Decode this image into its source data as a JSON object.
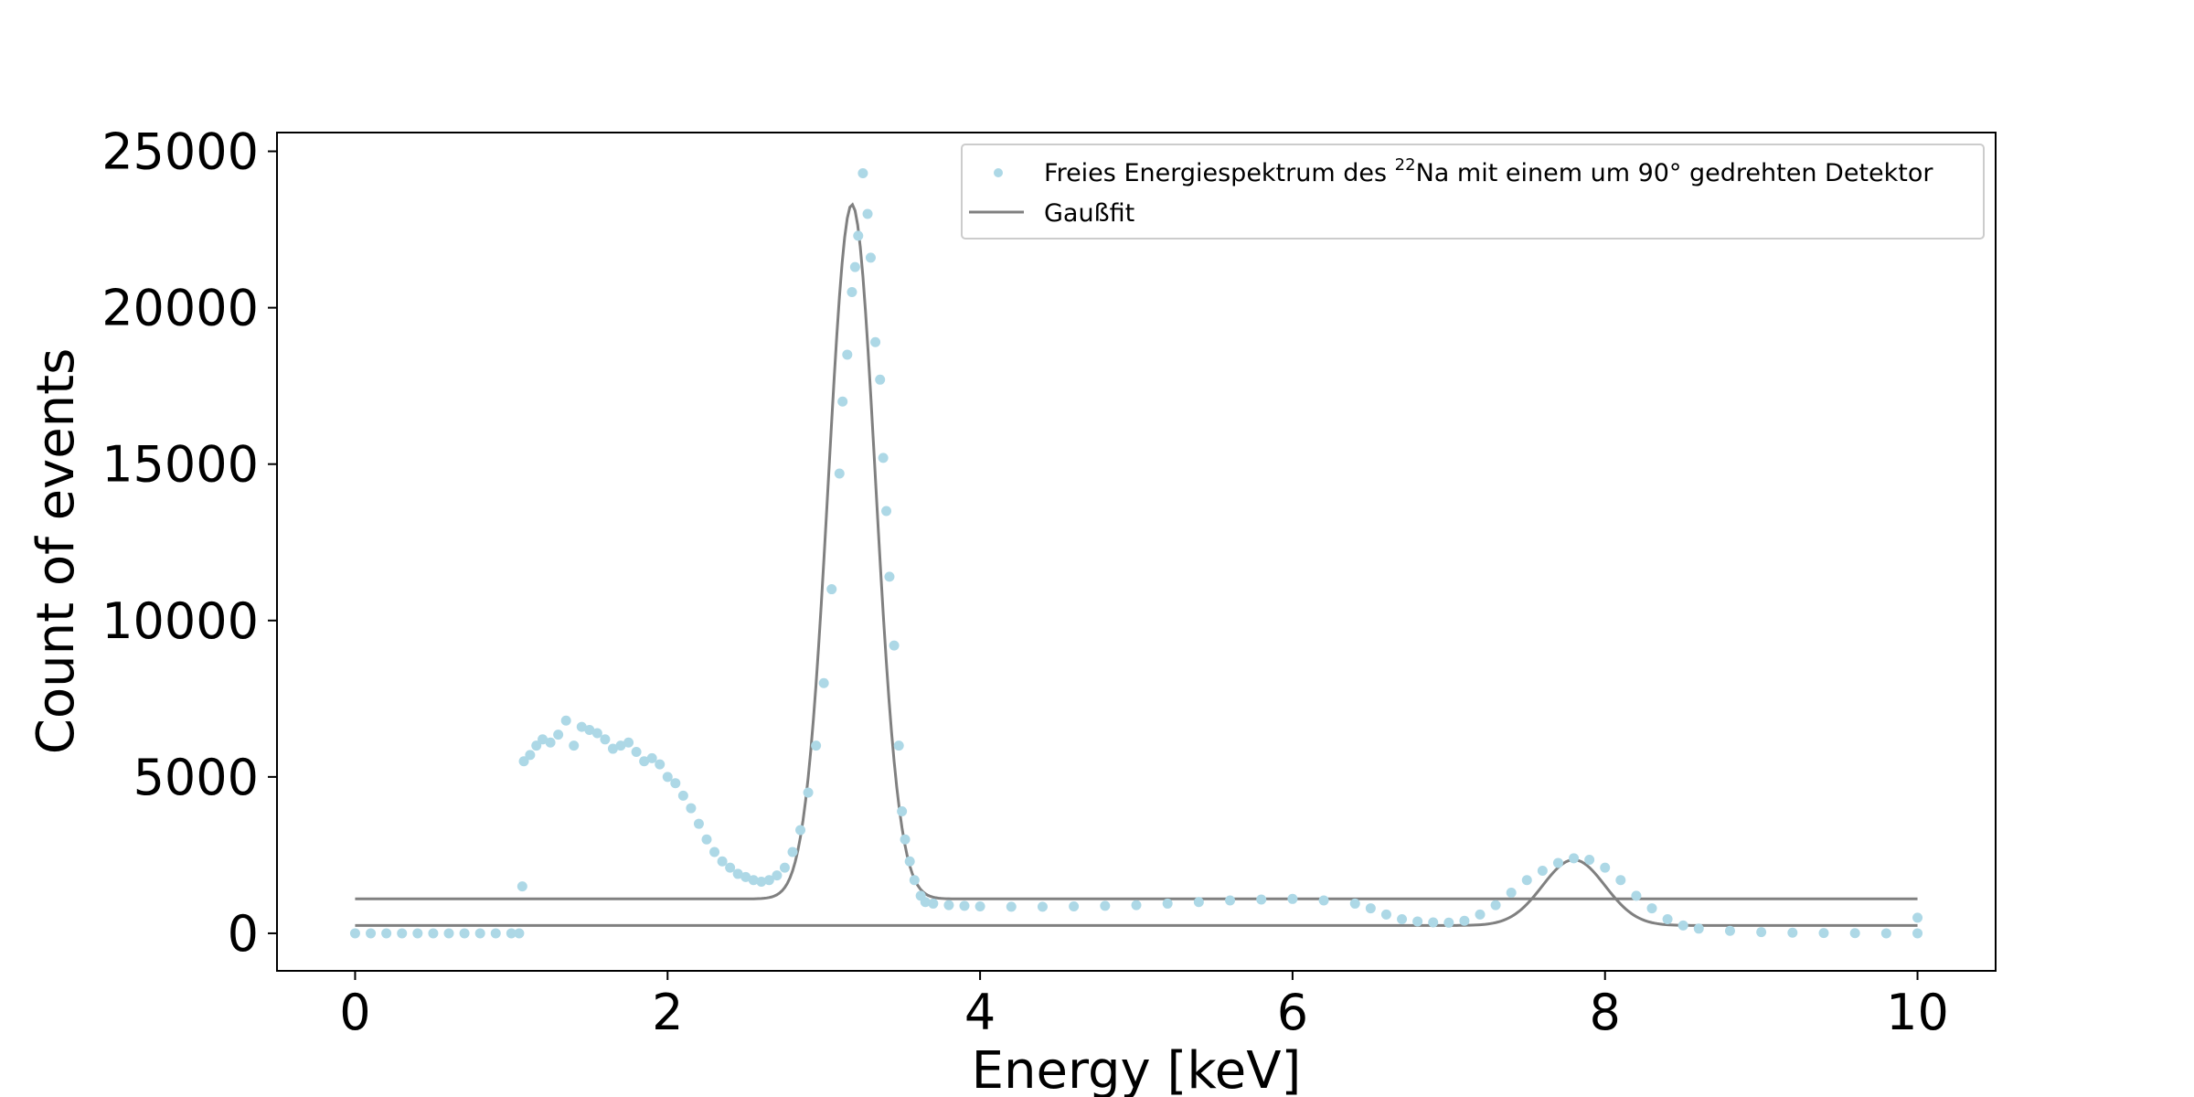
{
  "chart_data": {
    "type": "scatter",
    "xlabel": "Energy [keV]",
    "ylabel": "Count of events",
    "xlim": [
      -0.5,
      10.5
    ],
    "ylim": [
      -1200,
      25600
    ],
    "xticks": [
      0,
      2,
      4,
      6,
      8,
      10
    ],
    "yticks": [
      0,
      5000,
      10000,
      15000,
      20000,
      25000
    ],
    "grid": false,
    "legend_position": "top-right",
    "legend": {
      "scatter_label_prefix": "Freies Energiespektrum des ",
      "scatter_label_sup": "22",
      "scatter_label_suffix": "Na mit einem um 90° gedrehten Detektor",
      "fit_label": "Gaußfit"
    },
    "colors": {
      "scatter": "#add8e6",
      "fit": "#808080"
    },
    "scatter_points": [
      [
        0.0,
        0
      ],
      [
        0.1,
        0
      ],
      [
        0.2,
        0
      ],
      [
        0.3,
        0
      ],
      [
        0.4,
        0
      ],
      [
        0.5,
        0
      ],
      [
        0.6,
        0
      ],
      [
        0.7,
        0
      ],
      [
        0.8,
        0
      ],
      [
        0.9,
        0
      ],
      [
        1.0,
        0
      ],
      [
        1.05,
        0
      ],
      [
        1.07,
        1500
      ],
      [
        1.08,
        5500
      ],
      [
        1.12,
        5700
      ],
      [
        1.16,
        6000
      ],
      [
        1.2,
        6200
      ],
      [
        1.25,
        6100
      ],
      [
        1.3,
        6350
      ],
      [
        1.35,
        6800
      ],
      [
        1.4,
        6000
      ],
      [
        1.45,
        6600
      ],
      [
        1.5,
        6500
      ],
      [
        1.55,
        6400
      ],
      [
        1.6,
        6200
      ],
      [
        1.65,
        5900
      ],
      [
        1.7,
        6000
      ],
      [
        1.75,
        6100
      ],
      [
        1.8,
        5800
      ],
      [
        1.85,
        5500
      ],
      [
        1.9,
        5600
      ],
      [
        1.95,
        5400
      ],
      [
        2.0,
        5000
      ],
      [
        2.05,
        4800
      ],
      [
        2.1,
        4400
      ],
      [
        2.15,
        4000
      ],
      [
        2.2,
        3500
      ],
      [
        2.25,
        3000
      ],
      [
        2.3,
        2600
      ],
      [
        2.35,
        2300
      ],
      [
        2.4,
        2100
      ],
      [
        2.45,
        1900
      ],
      [
        2.5,
        1800
      ],
      [
        2.55,
        1700
      ],
      [
        2.6,
        1650
      ],
      [
        2.65,
        1700
      ],
      [
        2.7,
        1850
      ],
      [
        2.75,
        2100
      ],
      [
        2.8,
        2600
      ],
      [
        2.85,
        3300
      ],
      [
        2.9,
        4500
      ],
      [
        2.95,
        6000
      ],
      [
        3.0,
        8000
      ],
      [
        3.05,
        11000
      ],
      [
        3.1,
        14700
      ],
      [
        3.12,
        17000
      ],
      [
        3.15,
        18500
      ],
      [
        3.18,
        20500
      ],
      [
        3.2,
        21300
      ],
      [
        3.22,
        22300
      ],
      [
        3.25,
        24300
      ],
      [
        3.28,
        23000
      ],
      [
        3.3,
        21600
      ],
      [
        3.33,
        18900
      ],
      [
        3.36,
        17700
      ],
      [
        3.38,
        15200
      ],
      [
        3.4,
        13500
      ],
      [
        3.42,
        11400
      ],
      [
        3.45,
        9200
      ],
      [
        3.48,
        6000
      ],
      [
        3.5,
        3900
      ],
      [
        3.52,
        3000
      ],
      [
        3.55,
        2300
      ],
      [
        3.58,
        1700
      ],
      [
        3.62,
        1200
      ],
      [
        3.65,
        1000
      ],
      [
        3.7,
        950
      ],
      [
        3.8,
        900
      ],
      [
        3.9,
        880
      ],
      [
        4.0,
        860
      ],
      [
        4.2,
        850
      ],
      [
        4.4,
        850
      ],
      [
        4.6,
        860
      ],
      [
        4.8,
        880
      ],
      [
        5.0,
        900
      ],
      [
        5.2,
        950
      ],
      [
        5.4,
        1000
      ],
      [
        5.6,
        1050
      ],
      [
        5.8,
        1080
      ],
      [
        6.0,
        1100
      ],
      [
        6.2,
        1050
      ],
      [
        6.4,
        950
      ],
      [
        6.5,
        800
      ],
      [
        6.6,
        600
      ],
      [
        6.7,
        450
      ],
      [
        6.8,
        380
      ],
      [
        6.9,
        350
      ],
      [
        7.0,
        340
      ],
      [
        7.1,
        400
      ],
      [
        7.2,
        600
      ],
      [
        7.3,
        900
      ],
      [
        7.4,
        1300
      ],
      [
        7.5,
        1700
      ],
      [
        7.6,
        2000
      ],
      [
        7.7,
        2250
      ],
      [
        7.8,
        2400
      ],
      [
        7.9,
        2350
      ],
      [
        8.0,
        2100
      ],
      [
        8.1,
        1700
      ],
      [
        8.2,
        1200
      ],
      [
        8.3,
        800
      ],
      [
        8.4,
        450
      ],
      [
        8.5,
        250
      ],
      [
        8.6,
        150
      ],
      [
        8.8,
        80
      ],
      [
        9.0,
        40
      ],
      [
        9.2,
        20
      ],
      [
        9.4,
        10
      ],
      [
        9.6,
        5
      ],
      [
        9.8,
        0
      ],
      [
        10.0,
        0
      ],
      [
        10.0,
        500
      ]
    ],
    "fit_segments": [
      {
        "name": "Gaußfit 1",
        "baseline": 1100,
        "amplitude": 22200,
        "center": 3.18,
        "sigma": 0.15,
        "x_range": [
          0.0,
          10.0
        ]
      },
      {
        "name": "Gaußfit 2",
        "baseline": 250,
        "amplitude": 2100,
        "center": 7.8,
        "sigma": 0.2,
        "x_range": [
          0.0,
          10.0
        ]
      }
    ]
  }
}
